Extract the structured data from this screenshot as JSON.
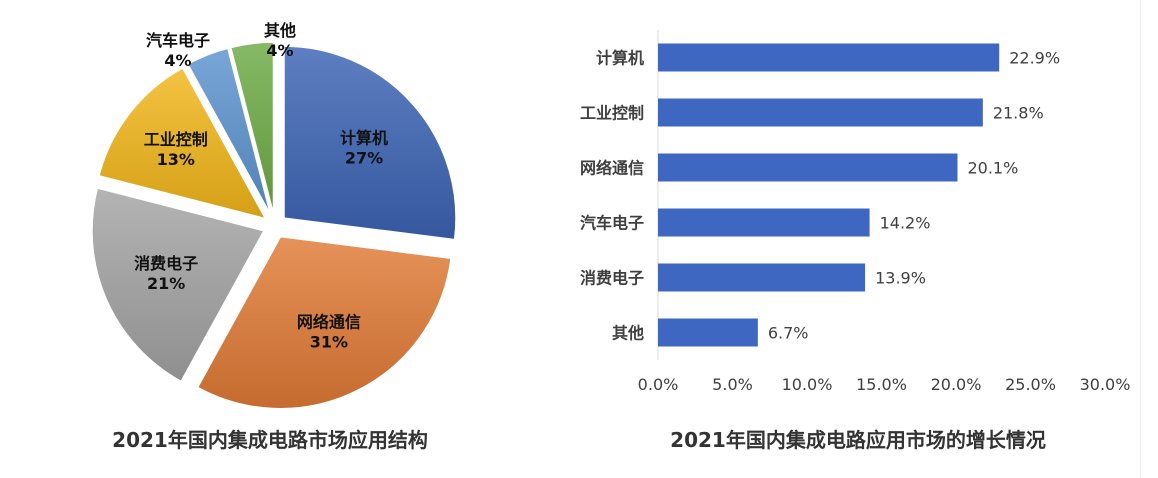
{
  "chart_data": [
    {
      "type": "pie",
      "title": "2021年国内集成电路市场应用结构",
      "categories": [
        "计算机",
        "网络通信",
        "消费电子",
        "工业控制",
        "汽车电子",
        "其他"
      ],
      "values": [
        27,
        31,
        21,
        13,
        4,
        4
      ],
      "value_labels": [
        "27%",
        "31%",
        "21%",
        "13%",
        "4%",
        "4%"
      ],
      "colors": [
        "#3b63b3",
        "#e07a35",
        "#a3a3a3",
        "#f2b619",
        "#5b93cf",
        "#6daa44"
      ],
      "exploded": true
    },
    {
      "type": "bar",
      "orientation": "horizontal",
      "title": "2021年国内集成电路应用市场的增长情况",
      "categories": [
        "计算机",
        "工业控制",
        "网络通信",
        "汽车电子",
        "消费电子",
        "其他"
      ],
      "values": [
        22.9,
        21.8,
        20.1,
        14.2,
        13.9,
        6.7
      ],
      "value_labels": [
        "22.9%",
        "21.8%",
        "20.1%",
        "14.2%",
        "13.9%",
        "6.7%"
      ],
      "xlim": [
        0,
        30
      ],
      "xticks": [
        "0.0%",
        "5.0%",
        "10.0%",
        "15.0%",
        "20.0%",
        "25.0%",
        "30.0%"
      ],
      "bar_color": "#3e67c2",
      "grid": false
    }
  ]
}
